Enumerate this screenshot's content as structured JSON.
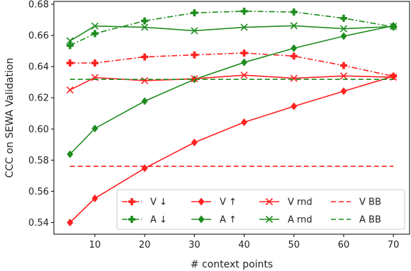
{
  "chart_data": {
    "type": "line",
    "xlabel": "# context points",
    "ylabel": "CCC on SEWA Validation",
    "xlim": [
      1.75,
      73.25
    ],
    "ylim": [
      0.5325,
      0.6818
    ],
    "xticks": [
      10,
      20,
      30,
      40,
      50,
      60,
      70
    ],
    "yticks": [
      0.54,
      0.56,
      0.58,
      0.6,
      0.62,
      0.64,
      0.66,
      0.68
    ],
    "ytick_labels": [
      "0.54",
      "0.56",
      "0.58",
      "0.60",
      "0.62",
      "0.64",
      "0.66",
      "0.68"
    ],
    "grid": false,
    "legend_position": "bottom-right",
    "x": [
      5,
      10,
      20,
      30,
      40,
      50,
      60,
      70
    ],
    "series": [
      {
        "name": "V ↓",
        "color": "#ff2020",
        "dash": "dashdot",
        "marker": "plus-filled",
        "values": [
          0.6423,
          0.6423,
          0.6462,
          0.6475,
          0.6487,
          0.6467,
          0.6407,
          0.6338
        ]
      },
      {
        "name": "A ↓",
        "color": "#1e8c1e",
        "dash": "dashdot",
        "marker": "plus-filled",
        "values": [
          0.6535,
          0.6612,
          0.6693,
          0.6745,
          0.6755,
          0.675,
          0.671,
          0.6655
        ]
      },
      {
        "name": "V ↑",
        "color": "#ff2020",
        "dash": "solid",
        "marker": "diamond",
        "values": [
          0.54,
          0.5555,
          0.5748,
          0.5913,
          0.6043,
          0.6145,
          0.6242,
          0.6338
        ]
      },
      {
        "name": "A ↑",
        "color": "#1e8c1e",
        "dash": "solid",
        "marker": "diamond",
        "values": [
          0.5838,
          0.6003,
          0.6178,
          0.6318,
          0.6427,
          0.6518,
          0.6595,
          0.6662
        ]
      },
      {
        "name": "V rnd",
        "color": "#ff2020",
        "dash": "solid",
        "marker": "x",
        "values": [
          0.625,
          0.633,
          0.631,
          0.6322,
          0.6345,
          0.6325,
          0.634,
          0.6332
        ]
      },
      {
        "name": "A rnd",
        "color": "#1e8c1e",
        "dash": "solid",
        "marker": "x",
        "values": [
          0.6565,
          0.666,
          0.6652,
          0.663,
          0.6652,
          0.6662,
          0.6643,
          0.6657
        ]
      },
      {
        "name": "V BB",
        "color": "#ff2020",
        "dash": "dashed",
        "marker": "none",
        "x": [
          5,
          70
        ],
        "values": [
          0.576,
          0.576
        ]
      },
      {
        "name": "A BB",
        "color": "#1e8c1e",
        "dash": "dashed",
        "marker": "none",
        "x": [
          5,
          70
        ],
        "values": [
          0.6318,
          0.6318
        ]
      }
    ]
  }
}
